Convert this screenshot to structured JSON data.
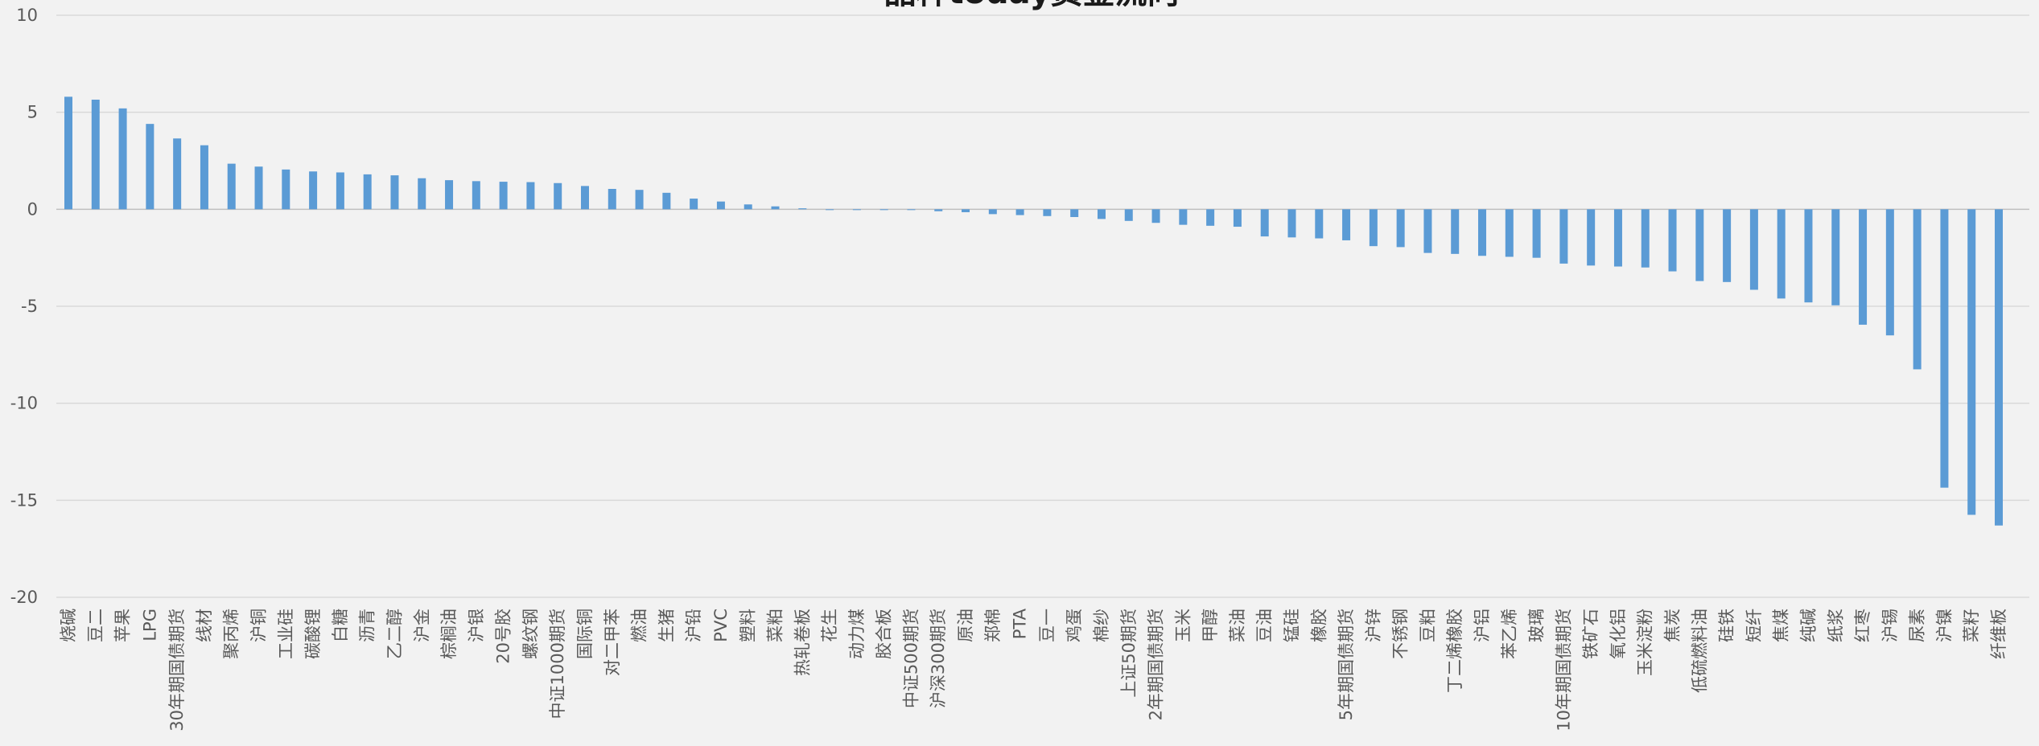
{
  "chart_data": {
    "type": "bar",
    "title": "品种today资金流向",
    "ylim": [
      -20,
      10
    ],
    "yticks": [
      10,
      5,
      0,
      -5,
      -10,
      -15,
      -20
    ],
    "grid": true,
    "color": "#5b9bd5",
    "categories": [
      "烧碱",
      "豆二",
      "苹果",
      "LPG",
      "30年期国债期货",
      "线材",
      "聚丙烯",
      "沪铜",
      "工业硅",
      "碳酸锂",
      "白糖",
      "沥青",
      "乙二醇",
      "沪金",
      "棕榈油",
      "沪银",
      "20号胶",
      "螺纹钢",
      "中证1000期货",
      "国际铜",
      "对二甲苯",
      "燃油",
      "生猪",
      "沪铅",
      "PVC",
      "塑料",
      "菜粕",
      "热轧卷板",
      "花生",
      "动力煤",
      "胶合板",
      "中证500期货",
      "沪深300期货",
      "原油",
      "郑棉",
      "PTA",
      "豆一",
      "鸡蛋",
      "棉纱",
      "上证50期货",
      "2年期国债期货",
      "玉米",
      "甲醇",
      "菜油",
      "豆油",
      "锰硅",
      "橡胶",
      "5年期国债期货",
      "沪锌",
      "不锈钢",
      "豆粕",
      "丁二烯橡胶",
      "沪铝",
      "苯乙烯",
      "玻璃",
      "10年期国债期货",
      "铁矿石",
      "氧化铝",
      "玉米淀粉",
      "焦炭",
      "低硫燃料油",
      "硅铁",
      "短纤",
      "焦煤",
      "纯碱",
      "纸浆",
      "红枣",
      "沪锡",
      "尿素",
      "沪镍",
      "菜籽",
      "纤维板"
    ],
    "values": [
      5.8,
      5.65,
      5.2,
      4.4,
      3.65,
      3.3,
      2.35,
      2.2,
      2.05,
      1.95,
      1.9,
      1.8,
      1.75,
      1.6,
      1.5,
      1.45,
      1.42,
      1.4,
      1.35,
      1.2,
      1.05,
      1.0,
      0.85,
      0.55,
      0.4,
      0.25,
      0.15,
      0.05,
      0.0,
      0.0,
      0.0,
      0.0,
      -0.1,
      -0.15,
      -0.25,
      -0.3,
      -0.35,
      -0.4,
      -0.5,
      -0.6,
      -0.7,
      -0.8,
      -0.85,
      -0.9,
      -1.4,
      -1.45,
      -1.5,
      -1.6,
      -1.9,
      -1.95,
      -2.25,
      -2.3,
      -2.4,
      -2.45,
      -2.5,
      -2.8,
      -2.9,
      -2.95,
      -3.0,
      -3.2,
      -3.7,
      -3.75,
      -4.15,
      -4.6,
      -4.8,
      -4.95,
      -5.95,
      -6.5,
      -8.25,
      -14.35,
      -15.75,
      -16.3
    ]
  }
}
